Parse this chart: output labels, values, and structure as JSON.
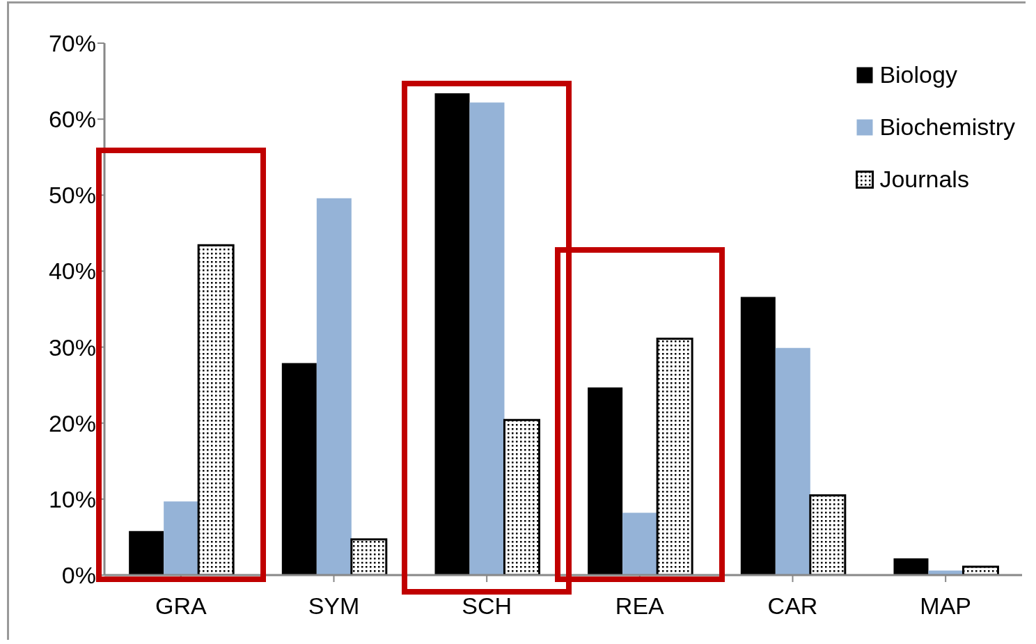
{
  "chart_data": {
    "type": "bar",
    "categories": [
      "GRA",
      "SYM",
      "SCH",
      "REA",
      "CAR",
      "MAP"
    ],
    "series": [
      {
        "name": "Biology",
        "color": "#000000",
        "values": [
          5.8,
          27.9,
          63.4,
          24.7,
          36.6,
          2.2
        ]
      },
      {
        "name": "Biochemistry",
        "color": "#95b3d7",
        "values": [
          9.7,
          49.6,
          62.2,
          8.2,
          29.9,
          0.6
        ]
      },
      {
        "name": "Journals",
        "color": "#000000",
        "values": [
          43.4,
          4.7,
          20.4,
          31.1,
          10.5,
          1.1
        ]
      }
    ],
    "ylim": [
      0,
      70
    ],
    "yticks": [
      {
        "value": 0,
        "label": "0%"
      },
      {
        "value": 10,
        "label": "10%"
      },
      {
        "value": 20,
        "label": "20%"
      },
      {
        "value": 30,
        "label": "30%"
      },
      {
        "value": 40,
        "label": "40%"
      },
      {
        "value": 50,
        "label": "50%"
      },
      {
        "value": 60,
        "label": "60%"
      },
      {
        "value": 70,
        "label": "70%"
      }
    ],
    "grid": false,
    "legend": "top right"
  }
}
